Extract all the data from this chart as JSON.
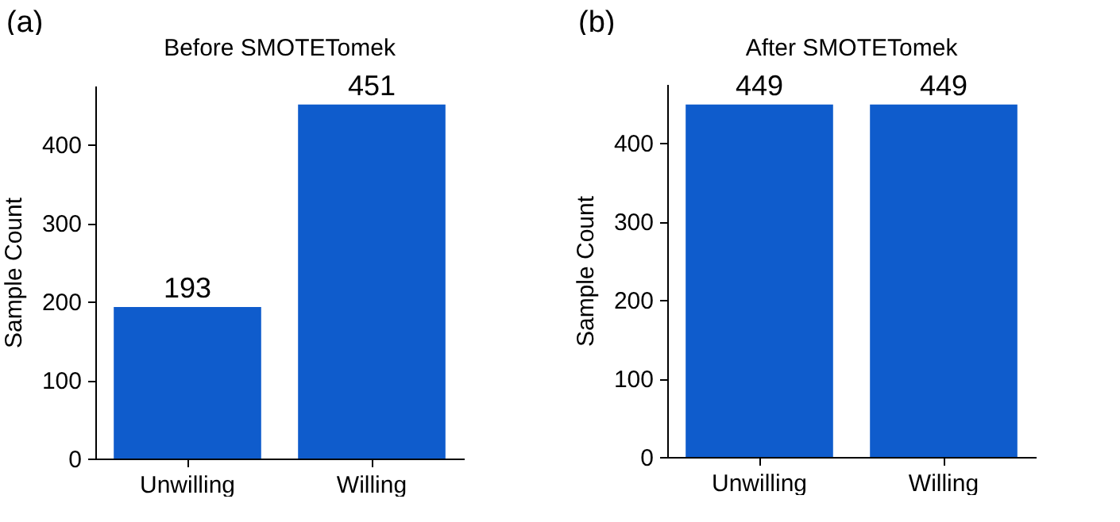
{
  "chart_data": [
    {
      "type": "bar",
      "title": "Before SMOTETomek",
      "ylabel": "Sample Count",
      "annotations": [
        "(a)"
      ],
      "categories": [
        "Unwilling",
        "Willing"
      ],
      "values": [
        193,
        451
      ],
      "color": "#0f5ccc",
      "ylim": [
        0,
        475
      ],
      "yticks": [
        0,
        100,
        200,
        300,
        400
      ],
      "data_labels": true,
      "grid": false
    },
    {
      "type": "bar",
      "title": "After SMOTETomek",
      "ylabel": "Sample Count",
      "annotations": [
        "(b)"
      ],
      "categories": [
        "Unwilling",
        "Willing"
      ],
      "values": [
        449,
        449
      ],
      "color": "#0f5ccc",
      "ylim": [
        0,
        475
      ],
      "yticks": [
        0,
        100,
        200,
        300,
        400
      ],
      "data_labels": true,
      "grid": false
    }
  ]
}
